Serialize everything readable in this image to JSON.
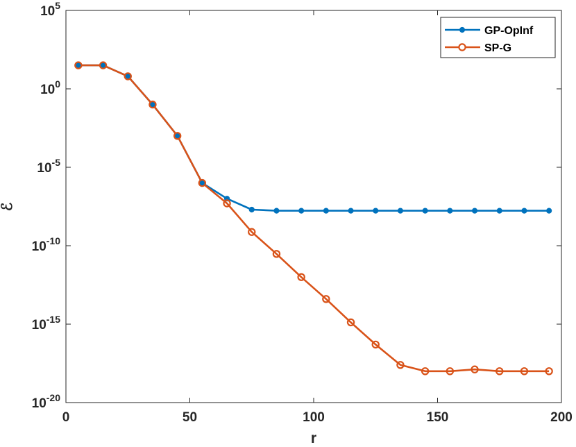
{
  "chart_data": {
    "type": "line",
    "xlabel": "r",
    "ylabel": "ℰ",
    "xlim": [
      0,
      200
    ],
    "ylim": [
      1e-20,
      100000.0
    ],
    "yscale": "log",
    "x_ticks": [
      0,
      50,
      100,
      150,
      200
    ],
    "y_ticks": [
      {
        "base": "10",
        "exp": "5",
        "value": 100000.0
      },
      {
        "base": "10",
        "exp": "0",
        "value": 1
      },
      {
        "base": "10",
        "exp": "-5",
        "value": 1e-05
      },
      {
        "base": "10",
        "exp": "-10",
        "value": 1e-10
      },
      {
        "base": "10",
        "exp": "-15",
        "value": 1e-15
      },
      {
        "base": "10",
        "exp": "-20",
        "value": 1e-20
      }
    ],
    "grid": false,
    "legend_position": "top-right",
    "x": [
      5,
      15,
      25,
      35,
      45,
      55,
      65,
      75,
      85,
      95,
      105,
      115,
      125,
      135,
      145,
      155,
      165,
      175,
      185,
      195
    ],
    "series": [
      {
        "name": "GP-OpInf",
        "color": "#0072BD",
        "marker": "filled-circle",
        "values": [
          31.6,
          31.6,
          6.3,
          0.1,
          0.001,
          1e-06,
          1e-07,
          2e-08,
          1.7e-08,
          1.7e-08,
          1.7e-08,
          1.7e-08,
          1.7e-08,
          1.7e-08,
          1.7e-08,
          1.7e-08,
          1.7e-08,
          1.7e-08,
          1.7e-08,
          1.7e-08
        ]
      },
      {
        "name": "SP-G",
        "color": "#D95319",
        "marker": "open-circle",
        "values": [
          31.6,
          31.6,
          6.3,
          0.1,
          0.001,
          1e-06,
          5e-08,
          7.5e-10,
          3e-11,
          1e-12,
          4e-14,
          1.3e-15,
          5e-17,
          2.5e-18,
          1e-18,
          1e-18,
          1.3e-18,
          1e-18,
          1e-18,
          1e-18
        ]
      }
    ]
  }
}
